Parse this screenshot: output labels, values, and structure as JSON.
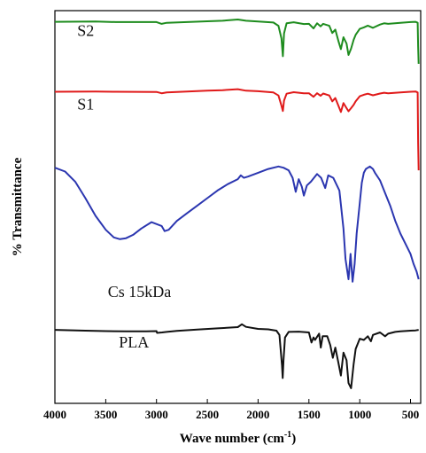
{
  "chart_data": {
    "type": "line",
    "title": "",
    "xlabel": "Wave number (cm",
    "xlabel_sup": "-1",
    "xlabel_end": ")",
    "ylabel": "% Transmittance",
    "xlim": [
      4000,
      400
    ],
    "x_reversed": true,
    "xticks": [
      4000,
      3500,
      3000,
      2500,
      2000,
      1500,
      1000,
      500
    ],
    "y_ticks_shown": false,
    "grid": false,
    "legend": "none (series labeled inline)",
    "colors": {
      "S2": "#1e8c1e",
      "S1": "#e01a1a",
      "Cs 15kDa": "#2b36b0",
      "PLA": "#111111",
      "frame": "#000000"
    },
    "series": [
      {
        "name": "S2",
        "label_text": "S2",
        "x": [
          4000,
          3600,
          3400,
          3000,
          2950,
          2900,
          2500,
          2350,
          2200,
          2120,
          2000,
          1850,
          1800,
          1770,
          1756,
          1745,
          1720,
          1650,
          1550,
          1500,
          1455,
          1420,
          1385,
          1360,
          1300,
          1270,
          1240,
          1210,
          1185,
          1160,
          1130,
          1110,
          1085,
          1060,
          1040,
          1000,
          960,
          920,
          870,
          800,
          760,
          720,
          600,
          500,
          450,
          430,
          425,
          420
        ],
        "values": [
          -4.4,
          -4.3,
          -4.5,
          -4.5,
          -5.2,
          -4.8,
          -4.2,
          -4.0,
          -3.5,
          -4.0,
          -4.3,
          -4.7,
          -6.0,
          -11.0,
          -18.0,
          -9.0,
          -5.0,
          -4.6,
          -5.3,
          -5.2,
          -7.0,
          -5.0,
          -6.2,
          -5.2,
          -6.0,
          -8.8,
          -7.5,
          -12.0,
          -15.2,
          -10.5,
          -13.0,
          -17.5,
          -15.0,
          -11.5,
          -9.5,
          -7.2,
          -6.6,
          -5.9,
          -6.8,
          -5.5,
          -5.0,
          -5.2,
          -4.8,
          -4.5,
          -4.4,
          -4.8,
          -14.0,
          -21.0
        ]
      },
      {
        "name": "S1",
        "label_text": "S1",
        "x": [
          4000,
          3600,
          3400,
          3000,
          2950,
          2900,
          2500,
          2350,
          2200,
          2120,
          2000,
          1850,
          1800,
          1770,
          1756,
          1745,
          1720,
          1650,
          1550,
          1500,
          1455,
          1420,
          1385,
          1360,
          1300,
          1270,
          1240,
          1210,
          1185,
          1160,
          1130,
          1110,
          1085,
          1060,
          1040,
          1000,
          960,
          920,
          870,
          800,
          760,
          720,
          600,
          500,
          450,
          430,
          425,
          420
        ],
        "values": [
          -32.0,
          -31.9,
          -32.0,
          -32.1,
          -32.6,
          -32.3,
          -31.6,
          -31.4,
          -31.0,
          -31.6,
          -31.8,
          -32.3,
          -33.5,
          -37.5,
          -39.6,
          -35.5,
          -32.8,
          -32.2,
          -32.6,
          -32.6,
          -34.0,
          -32.6,
          -33.6,
          -32.7,
          -33.5,
          -35.8,
          -34.5,
          -37.5,
          -40.0,
          -36.5,
          -38.5,
          -39.7,
          -38.5,
          -37.2,
          -35.8,
          -33.8,
          -33.2,
          -32.8,
          -33.4,
          -32.7,
          -32.4,
          -32.6,
          -32.3,
          -32.0,
          -31.9,
          -32.3,
          -52.0,
          -63.0
        ]
      },
      {
        "name": "Cs 15kDa",
        "label_text": "Cs 15kDa",
        "x": [
          4000,
          3900,
          3800,
          3700,
          3600,
          3500,
          3420,
          3360,
          3300,
          3230,
          3150,
          3050,
          2950,
          2920,
          2880,
          2800,
          2700,
          2600,
          2500,
          2400,
          2300,
          2200,
          2170,
          2140,
          2100,
          2000,
          1900,
          1800,
          1750,
          1700,
          1660,
          1630,
          1600,
          1570,
          1550,
          1520,
          1480,
          1420,
          1380,
          1340,
          1310,
          1260,
          1200,
          1160,
          1140,
          1110,
          1090,
          1070,
          1050,
          1030,
          1000,
          980,
          960,
          940,
          900,
          870,
          850,
          800,
          750,
          700,
          650,
          600,
          550,
          500,
          470,
          440,
          420
        ],
        "values": [
          -62.0,
          -63.5,
          -67.5,
          -74.0,
          -81.0,
          -86.5,
          -89.5,
          -90.2,
          -89.8,
          -88.5,
          -86.0,
          -83.5,
          -85.0,
          -87.0,
          -86.5,
          -83.0,
          -80.0,
          -77.0,
          -74.0,
          -71.0,
          -68.5,
          -66.5,
          -65.0,
          -66.0,
          -65.5,
          -64.0,
          -62.5,
          -61.5,
          -62.0,
          -63.0,
          -66.0,
          -71.5,
          -66.5,
          -69.5,
          -73.0,
          -69.0,
          -67.5,
          -64.5,
          -66.0,
          -70.0,
          -65.0,
          -66.0,
          -71.0,
          -86.0,
          -98.0,
          -106.0,
          -96.0,
          -107.0,
          -100.0,
          -88.0,
          -76.0,
          -68.0,
          -64.0,
          -62.5,
          -61.5,
          -62.5,
          -64.0,
          -67.0,
          -72.0,
          -77.0,
          -83.0,
          -88.0,
          -92.0,
          -96.0,
          -100.0,
          -103.0,
          -106.0
        ]
      },
      {
        "name": "PLA",
        "label_text": "PLA",
        "x": [
          4000,
          3700,
          3500,
          3300,
          3100,
          3000,
          2995,
          2945,
          2900,
          2800,
          2600,
          2400,
          2200,
          2160,
          2120,
          2000,
          1900,
          1820,
          1790,
          1765,
          1758,
          1750,
          1735,
          1700,
          1600,
          1500,
          1475,
          1455,
          1440,
          1400,
          1383,
          1365,
          1320,
          1290,
          1265,
          1240,
          1210,
          1185,
          1160,
          1130,
          1110,
          1085,
          1060,
          1040,
          1000,
          960,
          920,
          890,
          870,
          800,
          750,
          720,
          650,
          600,
          500,
          450,
          420
        ],
        "values": [
          -126.0,
          -126.3,
          -126.5,
          -126.6,
          -126.6,
          -126.5,
          -127.2,
          -127.0,
          -126.8,
          -126.4,
          -125.9,
          -125.4,
          -124.9,
          -123.8,
          -124.8,
          -125.6,
          -125.8,
          -126.3,
          -128.0,
          -140.0,
          -145.0,
          -138.0,
          -129.0,
          -126.8,
          -126.7,
          -127.0,
          -131.0,
          -129.0,
          -130.0,
          -127.5,
          -133.0,
          -128.5,
          -128.5,
          -132.0,
          -137.0,
          -133.0,
          -139.0,
          -144.0,
          -135.0,
          -138.0,
          -147.0,
          -149.0,
          -139.5,
          -133.5,
          -129.5,
          -130.0,
          -128.5,
          -130.5,
          -128.0,
          -127.0,
          -128.5,
          -127.5,
          -126.8,
          -126.6,
          -126.3,
          -126.2,
          -126.0
        ]
      }
    ]
  }
}
